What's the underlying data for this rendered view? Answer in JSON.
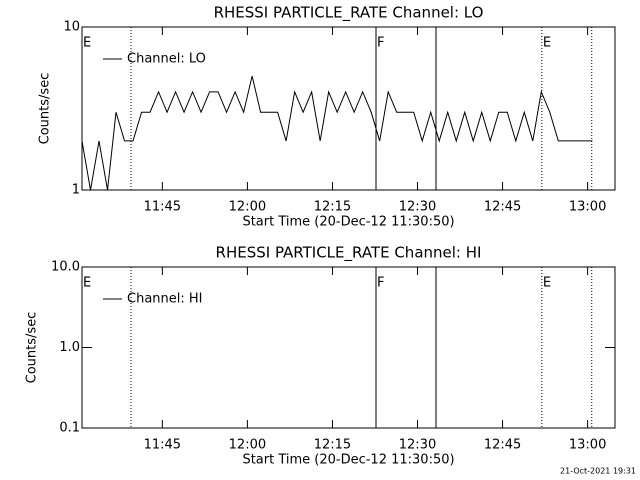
{
  "chart_data": [
    {
      "type": "line",
      "title": "RHESSI PARTICLE_RATE Channel: LO",
      "x_label": "Start Time (20-Dec-12 11:30:50)",
      "y_label": "Counts/sec",
      "log_y": true,
      "legend": "upper left",
      "xlim": [
        0,
        94
      ],
      "ylim": [
        1,
        10
      ],
      "yticks": [
        1,
        10
      ],
      "xticks": [
        {
          "value": 14.17,
          "label": "11:45"
        },
        {
          "value": 29.17,
          "label": "12:00"
        },
        {
          "value": 44.17,
          "label": "12:15"
        },
        {
          "value": 59.17,
          "label": "12:30"
        },
        {
          "value": 74.17,
          "label": "12:45"
        },
        {
          "value": 89.17,
          "label": "13:00"
        }
      ],
      "x": [
        0,
        1.5,
        3,
        4.5,
        6,
        7.5,
        9,
        10.5,
        12,
        13.5,
        15,
        16.5,
        18,
        19.5,
        21,
        22.5,
        24,
        25.5,
        27,
        28.5,
        30,
        31.5,
        33,
        34.5,
        36,
        37.5,
        39,
        40.5,
        42,
        43.5,
        45,
        46.5,
        48,
        49.5,
        51,
        52.5,
        54,
        55.5,
        57,
        58.5,
        60,
        61.5,
        63,
        64.5,
        66,
        67.5,
        69,
        70.5,
        72,
        73.5,
        75,
        76.5,
        78,
        79.5,
        81,
        82.5,
        84,
        85.5,
        87,
        88.5,
        90
      ],
      "series": [
        {
          "name": "Channel: LO",
          "color": "#000000",
          "values": [
            2,
            1,
            2,
            1,
            3,
            2,
            2,
            3,
            3,
            4,
            3,
            4,
            3,
            4,
            3,
            4,
            4,
            3,
            4,
            3,
            5,
            3,
            3,
            3,
            2,
            4,
            3,
            4,
            2,
            4,
            3,
            4,
            3,
            4,
            3,
            2,
            4,
            3,
            3,
            3,
            2,
            3,
            2,
            3,
            2,
            3,
            2,
            3,
            2,
            3,
            3,
            2,
            3,
            2,
            4,
            3,
            2,
            2,
            2,
            2,
            2
          ]
        }
      ],
      "vlines": [
        {
          "x": 8.64,
          "style": "dotted"
        },
        {
          "x": 51.85,
          "style": "solid"
        },
        {
          "x": 62.43,
          "style": "solid"
        },
        {
          "x": 81.1,
          "style": "dotted"
        },
        {
          "x": 89.9,
          "style": "dotted"
        }
      ],
      "annotations": [
        {
          "text": "E",
          "x": 0
        },
        {
          "text": "F",
          "x": 51.85
        },
        {
          "text": "E",
          "x": 81.1
        }
      ]
    },
    {
      "type": "line",
      "title": "RHESSI PARTICLE_RATE Channel: HI",
      "x_label": "Start Time (20-Dec-12 11:30:50)",
      "y_label": "Counts/sec",
      "log_y": true,
      "legend": "upper left",
      "xlim": [
        0,
        94
      ],
      "ylim": [
        0.1,
        10
      ],
      "yticks": [
        0.1,
        {
          "value": 1,
          "label": "1.0"
        },
        {
          "value": 10,
          "label": "10.0"
        }
      ],
      "xticks": [
        {
          "value": 14.17,
          "label": "11:45"
        },
        {
          "value": 29.17,
          "label": "12:00"
        },
        {
          "value": 44.17,
          "label": "12:15"
        },
        {
          "value": 59.17,
          "label": "12:30"
        },
        {
          "value": 74.17,
          "label": "12:45"
        },
        {
          "value": 89.17,
          "label": "13:00"
        }
      ],
      "x": [],
      "series": [
        {
          "name": "Channel: HI",
          "color": "#000000",
          "values": []
        }
      ],
      "vlines": [
        {
          "x": 8.64,
          "style": "dotted"
        },
        {
          "x": 51.85,
          "style": "solid"
        },
        {
          "x": 62.43,
          "style": "solid"
        },
        {
          "x": 81.1,
          "style": "dotted"
        },
        {
          "x": 89.9,
          "style": "dotted"
        }
      ],
      "annotations": [
        {
          "text": "E",
          "x": 0
        },
        {
          "text": "F",
          "x": 51.85
        },
        {
          "text": "E",
          "x": 81.1
        }
      ]
    }
  ],
  "footer": "21-Oct-2021 19:31"
}
